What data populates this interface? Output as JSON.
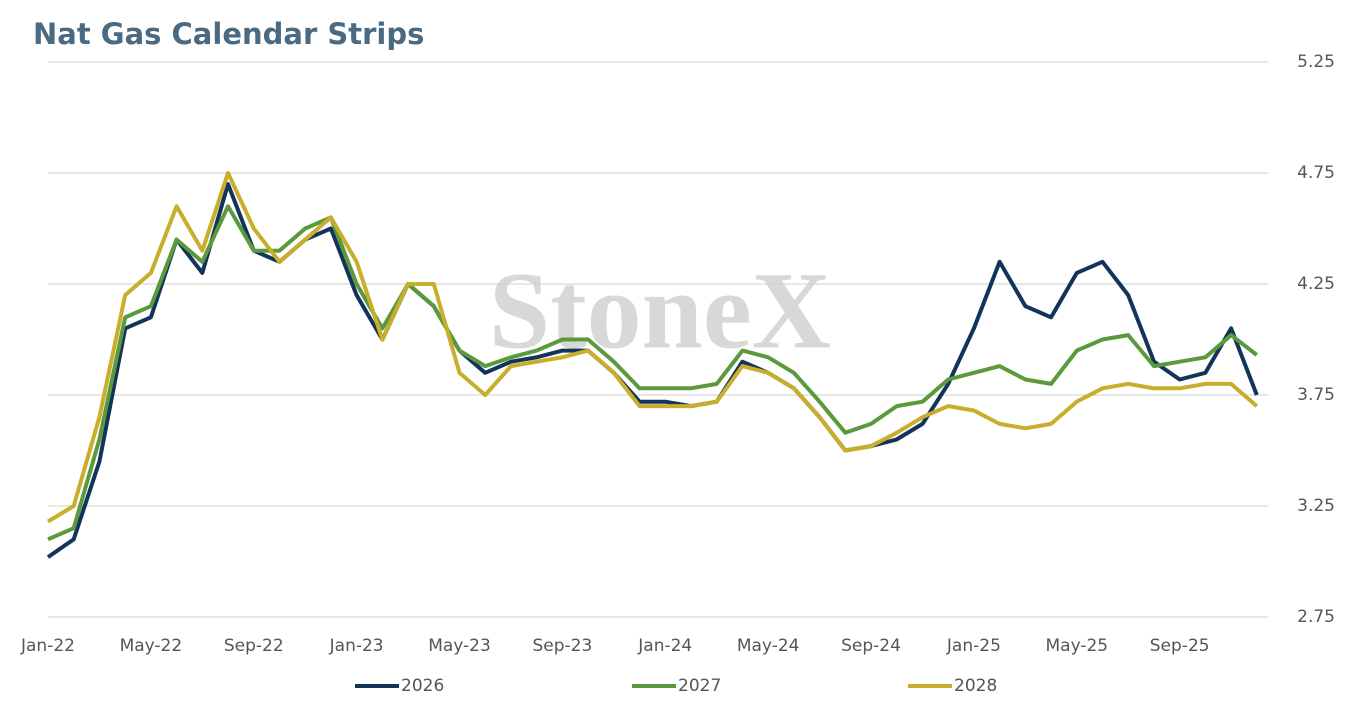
{
  "chart_data": {
    "type": "line",
    "title": "Nat Gas Calendar Strips",
    "watermark": "StoneX",
    "categories": [
      "Jan-22",
      null,
      null,
      null,
      "May-22",
      null,
      null,
      null,
      "Sep-22",
      null,
      null,
      null,
      "Jan-23",
      null,
      null,
      null,
      "May-23",
      null,
      null,
      null,
      "Sep-23",
      null,
      null,
      null,
      "Jan-24",
      null,
      null,
      null,
      "May-24",
      null,
      null,
      null,
      "Sep-24",
      null,
      null,
      null,
      "Jan-25",
      null,
      null,
      null,
      "May-25",
      null,
      null,
      null,
      "Sep-25",
      null,
      null,
      null
    ],
    "series": [
      {
        "name": "2026",
        "color": "#12335a",
        "values": [
          3.02,
          3.1,
          3.45,
          4.05,
          4.1,
          4.45,
          4.3,
          4.7,
          4.4,
          4.35,
          4.45,
          4.5,
          4.2,
          4.0,
          4.25,
          4.15,
          3.95,
          3.85,
          3.9,
          3.92,
          3.95,
          3.95,
          3.85,
          3.72,
          3.72,
          3.7,
          3.72,
          3.9,
          3.85,
          3.78,
          3.65,
          3.5,
          3.52,
          3.55,
          3.62,
          3.8,
          4.05,
          4.35,
          4.15,
          4.1,
          4.3,
          4.35,
          4.2,
          3.9,
          3.82,
          3.85,
          4.05,
          3.75
        ]
      },
      {
        "name": "2027",
        "color": "#5a9a3c",
        "values": [
          3.1,
          3.15,
          3.55,
          4.1,
          4.15,
          4.45,
          4.35,
          4.6,
          4.4,
          4.4,
          4.5,
          4.55,
          4.25,
          4.05,
          4.25,
          4.15,
          3.95,
          3.88,
          3.92,
          3.95,
          4.0,
          4.0,
          3.9,
          3.78,
          3.78,
          3.78,
          3.8,
          3.95,
          3.92,
          3.85,
          3.72,
          3.58,
          3.62,
          3.7,
          3.72,
          3.82,
          3.85,
          3.88,
          3.82,
          3.8,
          3.95,
          4.0,
          4.02,
          3.88,
          3.9,
          3.92,
          4.02,
          3.93
        ]
      },
      {
        "name": "2028",
        "color": "#c9ae2c",
        "values": [
          3.18,
          3.25,
          3.65,
          4.2,
          4.3,
          4.6,
          4.4,
          4.75,
          4.5,
          4.35,
          4.45,
          4.55,
          4.35,
          4.0,
          4.25,
          4.25,
          3.85,
          3.75,
          3.88,
          3.9,
          3.92,
          3.95,
          3.85,
          3.7,
          3.7,
          3.7,
          3.72,
          3.88,
          3.85,
          3.78,
          3.65,
          3.5,
          3.52,
          3.58,
          3.65,
          3.7,
          3.68,
          3.62,
          3.6,
          3.62,
          3.72,
          3.78,
          3.8,
          3.78,
          3.78,
          3.8,
          3.8,
          3.7
        ]
      }
    ],
    "ylim": [
      2.75,
      5.25
    ],
    "yticks": [
      2.75,
      3.25,
      3.75,
      4.25,
      4.75,
      5.25
    ],
    "grid": true,
    "legend": "bottom"
  }
}
